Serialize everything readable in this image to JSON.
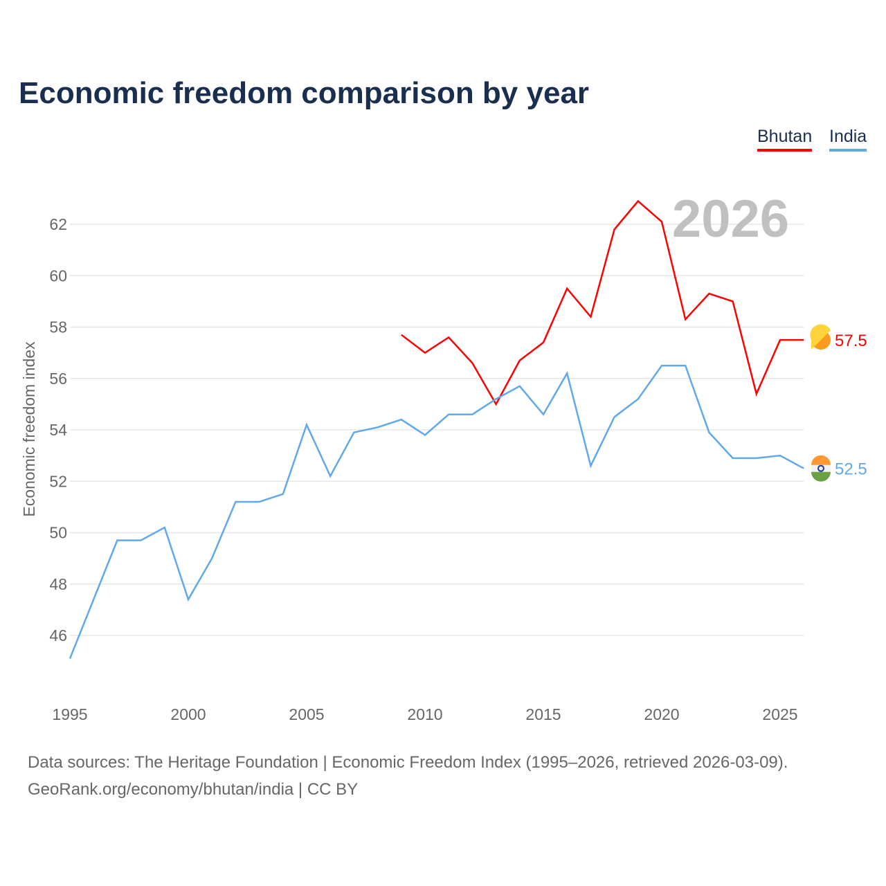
{
  "title": "Economic freedom comparison by year",
  "legend": [
    {
      "label": "Bhutan",
      "color": "#ff0000"
    },
    {
      "label": "India",
      "color": "#5fa8ec"
    }
  ],
  "year_watermark": "2026",
  "footer": {
    "line1": "Data sources: The Heritage Foundation | Economic Freedom Index (1995–2026, retrieved 2026-03-09).",
    "line2": "GeoRank.org/economy/bhutan/india | CC BY"
  },
  "chart_data": {
    "type": "line",
    "title": "Economic freedom comparison by year",
    "xlabel": "",
    "ylabel": "Economic freedom index",
    "xlim": [
      1995,
      2026
    ],
    "ylim": [
      45,
      63.5
    ],
    "xticks": [
      1995,
      2000,
      2005,
      2010,
      2015,
      2020,
      2025
    ],
    "yticks": [
      46,
      48,
      50,
      52,
      54,
      56,
      58,
      60,
      62
    ],
    "grid": true,
    "legend_position": "top-right",
    "series": [
      {
        "name": "Bhutan",
        "color": "#ff0000",
        "end_label": "57.5",
        "x": [
          2009,
          2010,
          2011,
          2012,
          2013,
          2014,
          2015,
          2016,
          2017,
          2018,
          2019,
          2020,
          2021,
          2022,
          2023,
          2024,
          2025,
          2026
        ],
        "y": [
          57.7,
          57.0,
          57.6,
          56.6,
          55.0,
          56.7,
          57.4,
          59.5,
          58.4,
          61.8,
          62.9,
          62.1,
          58.3,
          59.3,
          59.0,
          55.4,
          57.5,
          57.5
        ]
      },
      {
        "name": "India",
        "color": "#5fa8ec",
        "end_label": "52.5",
        "x": [
          1995,
          1996,
          1997,
          1998,
          1999,
          2000,
          2001,
          2002,
          2003,
          2004,
          2005,
          2006,
          2007,
          2008,
          2009,
          2010,
          2011,
          2012,
          2013,
          2014,
          2015,
          2016,
          2017,
          2018,
          2019,
          2020,
          2021,
          2022,
          2023,
          2024,
          2025,
          2026
        ],
        "y": [
          45.1,
          47.4,
          49.7,
          49.7,
          50.2,
          47.4,
          49.0,
          51.2,
          51.2,
          51.5,
          54.2,
          52.2,
          53.9,
          54.1,
          54.4,
          53.8,
          54.6,
          54.6,
          55.2,
          55.7,
          54.6,
          56.2,
          52.6,
          54.5,
          55.2,
          56.5,
          56.5,
          53.9,
          52.9,
          52.9,
          53.0,
          52.5
        ]
      }
    ]
  }
}
